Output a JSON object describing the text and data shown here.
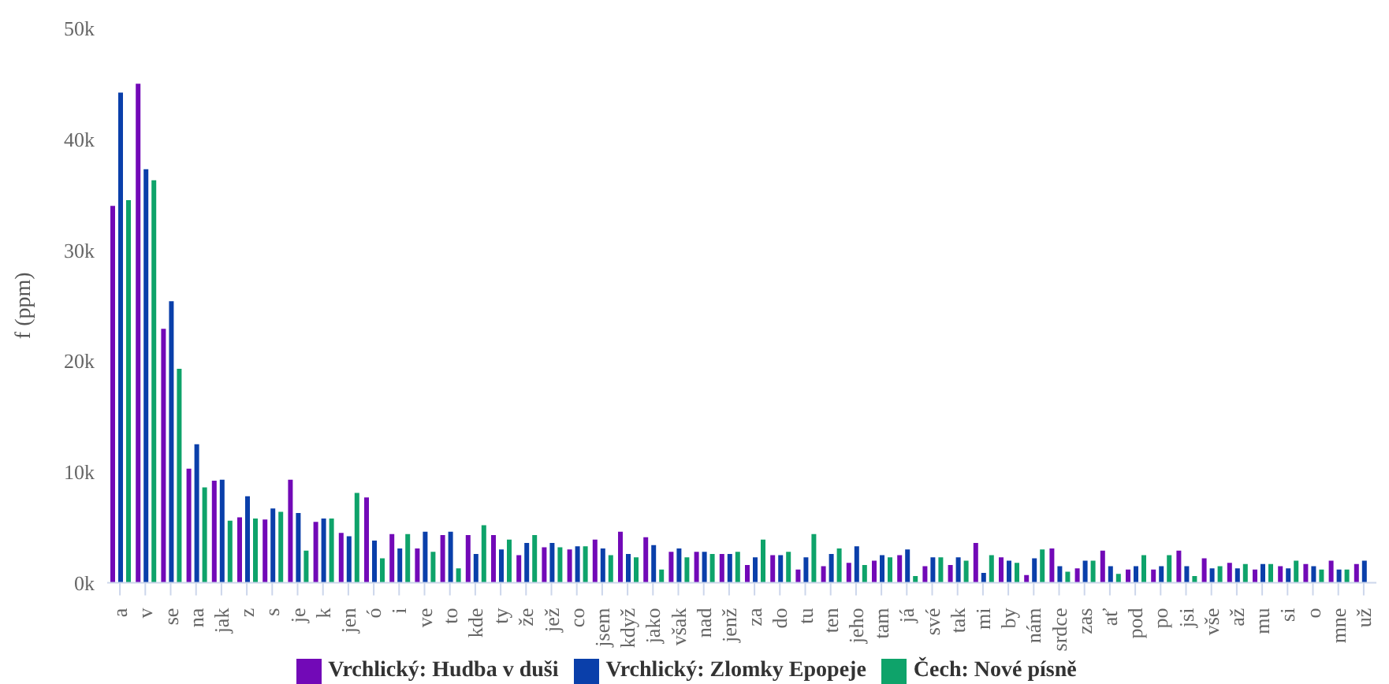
{
  "chart_data": {
    "type": "bar",
    "ylabel": "f (ppm)",
    "categories": [
      "a",
      "v",
      "se",
      "na",
      "jak",
      "z",
      "s",
      "je",
      "k",
      "jen",
      "ó",
      "i",
      "ve",
      "to",
      "kde",
      "ty",
      "že",
      "jež",
      "co",
      "jsem",
      "když",
      "jako",
      "však",
      "nad",
      "jenž",
      "za",
      "do",
      "tu",
      "ten",
      "jeho",
      "tam",
      "já",
      "své",
      "tak",
      "mi",
      "by",
      "nám",
      "srdce",
      "zas",
      "ať",
      "pod",
      "po",
      "jsi",
      "vše",
      "až",
      "mu",
      "si",
      "o",
      "mne",
      "už"
    ],
    "series": [
      {
        "name": "Vrchlický: Hudba v duši",
        "color": "#7209b7",
        "values": [
          34000,
          45000,
          22900,
          10300,
          9200,
          5900,
          5700,
          9300,
          5500,
          4500,
          7700,
          4400,
          3100,
          4300,
          4300,
          4300,
          2500,
          3200,
          3000,
          3900,
          4600,
          4100,
          2800,
          2800,
          2600,
          1600,
          2500,
          1200,
          1500,
          1800,
          2000,
          2500,
          1500,
          1600,
          3600,
          2300,
          700,
          3100,
          1300,
          2900,
          1200,
          1200,
          2900,
          2200,
          1800,
          1200,
          1500,
          1700,
          2000,
          1700
        ]
      },
      {
        "name": "Vrchlický: Zlomky Epopeje",
        "color": "#0a3faa",
        "values": [
          44200,
          37300,
          25400,
          12500,
          9300,
          7800,
          6700,
          6300,
          5800,
          4200,
          3800,
          3100,
          4600,
          4600,
          2600,
          3000,
          3600,
          3600,
          3300,
          3100,
          2600,
          3400,
          3100,
          2800,
          2600,
          2300,
          2500,
          2300,
          2600,
          3300,
          2500,
          3000,
          2300,
          2300,
          900,
          2000,
          2200,
          1500,
          2000,
          1500,
          1500,
          1500,
          1500,
          1300,
          1300,
          1700,
          1300,
          1500,
          1200,
          2000
        ]
      },
      {
        "name": "Čech: Nové písně",
        "color": "#0ea36a",
        "values": [
          34500,
          36300,
          19300,
          8600,
          5600,
          5800,
          6400,
          2900,
          5800,
          8100,
          2200,
          4400,
          2800,
          1300,
          5200,
          3900,
          4300,
          3200,
          3300,
          2500,
          2300,
          1200,
          2300,
          2600,
          2800,
          3900,
          2800,
          4400,
          3100,
          1600,
          2300,
          600,
          2300,
          2000,
          2500,
          1800,
          3000,
          1000,
          2000,
          800,
          2500,
          2500,
          600,
          1500,
          1700,
          1700,
          2000,
          1200,
          1200,
          null
        ]
      }
    ],
    "ylim": [
      0,
      50000
    ],
    "yticks": [
      {
        "value": 0,
        "label": "0k"
      },
      {
        "value": 10000,
        "label": "10k"
      },
      {
        "value": 20000,
        "label": "20k"
      },
      {
        "value": 30000,
        "label": "30k"
      },
      {
        "value": 40000,
        "label": "40k"
      },
      {
        "value": 50000,
        "label": "50k"
      }
    ],
    "grid": false,
    "legend": "bottom"
  }
}
